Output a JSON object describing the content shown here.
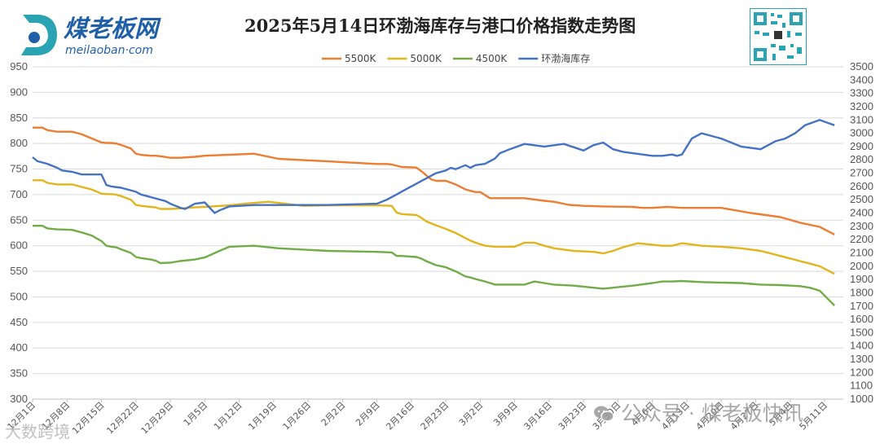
{
  "brand": {
    "name": "煤老板网",
    "domain": "meilaoban·com",
    "colors": {
      "teal": "#2aa4b3",
      "blue": "#1f5fa8"
    }
  },
  "watermark": {
    "text": "公众号 · 煤老板快讯",
    "icon": "wechat-icon",
    "secondary": "大数跨境"
  },
  "chart_data": {
    "type": "line",
    "title": "2025年5月14日环渤海库存与港口价格指数走势图",
    "legend_position": "top",
    "grid": true,
    "y_left": {
      "min": 300,
      "max": 950,
      "step": 50,
      "ticks": [
        "950",
        "900",
        "850",
        "800",
        "750",
        "700",
        "650",
        "600",
        "550",
        "500",
        "450",
        "400",
        "350",
        "300"
      ]
    },
    "y_right": {
      "min": 1000,
      "max": 3500,
      "step": 100,
      "ticks": [
        "3500",
        "3400",
        "3300",
        "3200",
        "3100",
        "3000",
        "2900",
        "2800",
        "2700",
        "2600",
        "2500",
        "2400",
        "2300",
        "2200",
        "2100",
        "2000",
        "1900",
        "1800",
        "1700",
        "1600",
        "1500",
        "1400",
        "1300",
        "1200",
        "1100",
        "1000"
      ]
    },
    "x_range": [
      0,
      161
    ],
    "x_ticks": [
      {
        "x": 0,
        "label": "12月1日"
      },
      {
        "x": 7,
        "label": "12月8日"
      },
      {
        "x": 14,
        "label": "12月15日"
      },
      {
        "x": 21,
        "label": "12月22日"
      },
      {
        "x": 28,
        "label": "12月29日"
      },
      {
        "x": 35,
        "label": "1月5日"
      },
      {
        "x": 42,
        "label": "1月12日"
      },
      {
        "x": 49,
        "label": "1月19日"
      },
      {
        "x": 56,
        "label": "1月26日"
      },
      {
        "x": 63,
        "label": "2月2日"
      },
      {
        "x": 70,
        "label": "2月9日"
      },
      {
        "x": 77,
        "label": "2月16日"
      },
      {
        "x": 84,
        "label": "2月23日"
      },
      {
        "x": 91,
        "label": "3月2日"
      },
      {
        "x": 98,
        "label": "3月9日"
      },
      {
        "x": 105,
        "label": "3月16日"
      },
      {
        "x": 112,
        "label": "3月23日"
      },
      {
        "x": 119,
        "label": "3月30日"
      },
      {
        "x": 126,
        "label": "4月6日"
      },
      {
        "x": 133,
        "label": "4月13日"
      },
      {
        "x": 140,
        "label": "4月20日"
      },
      {
        "x": 147,
        "label": "4月27日"
      },
      {
        "x": 154,
        "label": "5月4日"
      },
      {
        "x": 161,
        "label": "5月11日"
      }
    ],
    "series": [
      {
        "name": "5500K",
        "axis": "left",
        "color": "#ed7d31",
        "x": [
          0,
          2,
          3,
          5,
          8,
          10,
          12,
          14,
          15,
          16,
          17,
          18,
          20,
          21,
          22,
          24,
          25,
          26,
          28,
          30,
          33,
          35,
          40,
          45,
          50,
          60,
          70,
          72,
          73,
          75,
          78,
          79,
          80,
          81,
          82,
          84,
          86,
          88,
          90,
          91,
          93,
          96,
          100,
          104,
          106,
          109,
          112,
          116,
          122,
          124,
          126,
          129,
          132,
          136,
          140,
          146,
          152,
          156,
          160,
          163
        ],
        "values": [
          831,
          831,
          826,
          823,
          823,
          818,
          810,
          802,
          801,
          801,
          800,
          797,
          790,
          780,
          778,
          776,
          776,
          775,
          772,
          772,
          774,
          776,
          778,
          780,
          770,
          765,
          760,
          760,
          759,
          754,
          753,
          746,
          738,
          730,
          727,
          727,
          720,
          710,
          705,
          705,
          693,
          693,
          693,
          688,
          686,
          680,
          678,
          677,
          676,
          674,
          674,
          676,
          674,
          674,
          674,
          664,
          656,
          645,
          637,
          622
        ]
      },
      {
        "name": "5000K",
        "axis": "left",
        "color": "#e3b51d",
        "x": [
          0,
          2,
          3,
          5,
          8,
          10,
          12,
          14,
          15,
          16,
          17,
          18,
          20,
          21,
          22,
          24,
          25,
          26,
          28,
          30,
          33,
          35,
          40,
          44,
          48,
          55,
          60,
          70,
          73,
          74,
          75,
          78,
          79,
          80,
          82,
          84,
          86,
          88,
          89,
          90,
          92,
          94,
          96,
          98,
          100,
          102,
          104,
          106,
          110,
          114,
          116,
          118,
          120,
          123,
          126,
          128,
          130,
          132,
          136,
          140,
          144,
          148,
          152,
          156,
          160,
          163
        ],
        "values": [
          728,
          728,
          723,
          720,
          720,
          715,
          710,
          702,
          701,
          701,
          700,
          697,
          690,
          680,
          678,
          676,
          675,
          672,
          672,
          673,
          675,
          676,
          679,
          683,
          686,
          678,
          679,
          679,
          678,
          665,
          662,
          660,
          655,
          648,
          640,
          633,
          625,
          615,
          610,
          606,
          600,
          598,
          598,
          598,
          606,
          606,
          600,
          595,
          590,
          588,
          585,
          590,
          597,
          605,
          602,
          600,
          600,
          605,
          600,
          598,
          595,
          590,
          580,
          570,
          560,
          545
        ]
      },
      {
        "name": "4500K",
        "axis": "left",
        "color": "#70ad47",
        "x": [
          0,
          2,
          3,
          5,
          8,
          10,
          12,
          14,
          15,
          16,
          17,
          18,
          20,
          21,
          22,
          24,
          25,
          26,
          28,
          30,
          33,
          35,
          38,
          40,
          45,
          50,
          60,
          70,
          73,
          74,
          75,
          78,
          79,
          80,
          82,
          84,
          86,
          88,
          89,
          90,
          92,
          94,
          96,
          98,
          100,
          102,
          104,
          106,
          110,
          112,
          114,
          116,
          118,
          122,
          126,
          128,
          130,
          132,
          136,
          140,
          144,
          148,
          152,
          156,
          158,
          160,
          163
        ],
        "values": [
          639,
          639,
          634,
          632,
          631,
          626,
          620,
          609,
          600,
          598,
          597,
          593,
          586,
          578,
          576,
          573,
          571,
          566,
          567,
          570,
          573,
          577,
          590,
          598,
          600,
          595,
          590,
          588,
          587,
          580,
          580,
          578,
          575,
          570,
          562,
          558,
          550,
          540,
          538,
          535,
          530,
          524,
          524,
          524,
          524,
          530,
          527,
          524,
          522,
          520,
          518,
          516,
          518,
          522,
          527,
          530,
          530,
          531,
          529,
          528,
          527,
          524,
          523,
          521,
          518,
          512,
          483
        ]
      },
      {
        "name": "环渤海库存",
        "axis": "right",
        "color": "#4472c4",
        "x": [
          0,
          1,
          2,
          3,
          5,
          6,
          8,
          10,
          14,
          15,
          16,
          18,
          19,
          21,
          22,
          23,
          25,
          27,
          28,
          30,
          31,
          33,
          35,
          37,
          38,
          40,
          45,
          50,
          60,
          70,
          72,
          74,
          76,
          78,
          80,
          82,
          84,
          85,
          86,
          88,
          89,
          90,
          92,
          94,
          95,
          97,
          100,
          104,
          106,
          108,
          112,
          114,
          116,
          118,
          120,
          124,
          126,
          128,
          130,
          131,
          132,
          134,
          136,
          140,
          144,
          148,
          151,
          153,
          155,
          157,
          160,
          163
        ],
        "values": [
          2820,
          2790,
          2780,
          2770,
          2740,
          2720,
          2710,
          2690,
          2690,
          2610,
          2600,
          2590,
          2580,
          2560,
          2540,
          2530,
          2510,
          2490,
          2470,
          2440,
          2430,
          2470,
          2480,
          2400,
          2420,
          2450,
          2460,
          2460,
          2460,
          2470,
          2500,
          2540,
          2580,
          2620,
          2660,
          2700,
          2720,
          2740,
          2730,
          2760,
          2740,
          2760,
          2770,
          2810,
          2850,
          2880,
          2920,
          2900,
          2910,
          2920,
          2870,
          2910,
          2930,
          2880,
          2860,
          2840,
          2830,
          2830,
          2840,
          2830,
          2840,
          2960,
          3000,
          2960,
          2900,
          2880,
          2940,
          2960,
          3000,
          3060,
          3100,
          3060
        ]
      }
    ]
  }
}
